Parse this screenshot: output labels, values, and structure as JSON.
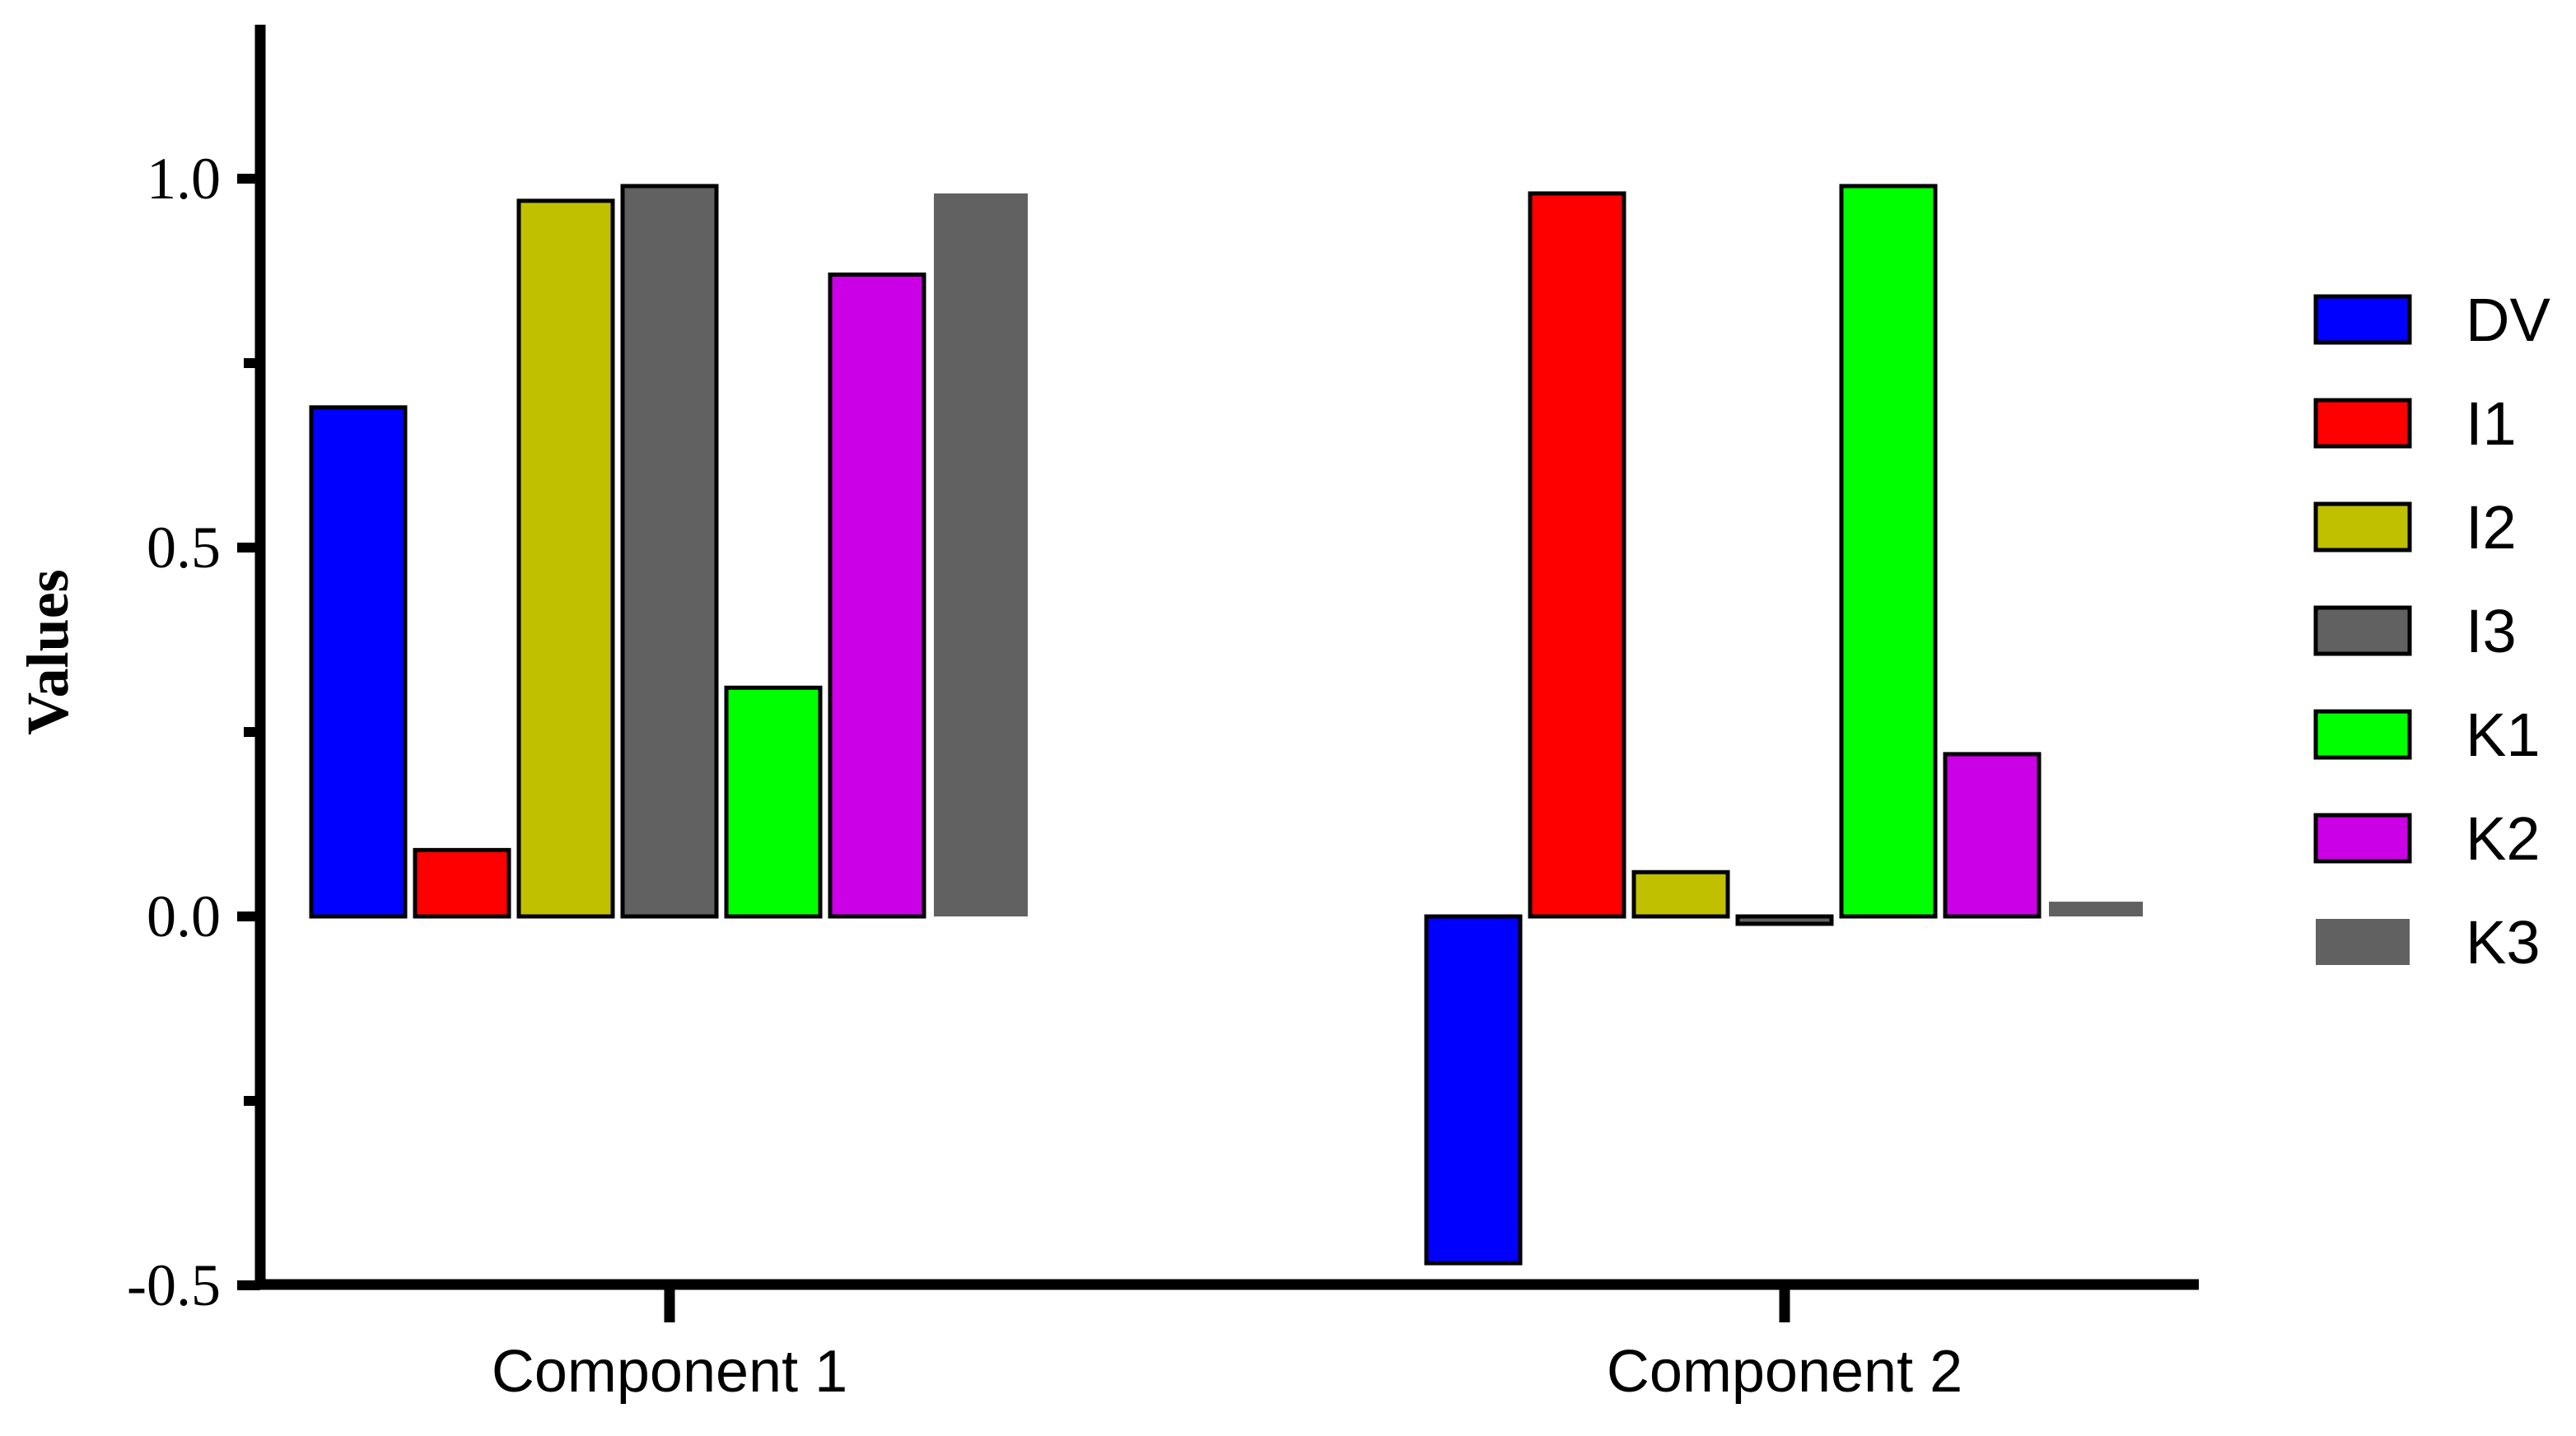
{
  "chart_data": {
    "type": "bar",
    "title": "",
    "xlabel": "",
    "ylabel": "Values",
    "ylim": [
      -0.5,
      1.2
    ],
    "yticks": [
      -0.5,
      0.0,
      0.5,
      1.0
    ],
    "ytick_labels": [
      "-0.5",
      "0.0",
      "0.5",
      "1.0"
    ],
    "categories": [
      "Component 1",
      "Component 2"
    ],
    "legend_position": "right",
    "grid": false,
    "series": [
      {
        "name": "DV",
        "color": "#0000ff",
        "values": [
          0.69,
          -0.47
        ]
      },
      {
        "name": "I1",
        "color": "#ff0000",
        "values": [
          0.09,
          0.98
        ]
      },
      {
        "name": "I2",
        "color": "#c0c000",
        "values": [
          0.97,
          0.06
        ]
      },
      {
        "name": "I3",
        "color": "#616161",
        "values": [
          0.99,
          -0.01
        ]
      },
      {
        "name": "K1",
        "color": "#00ff00",
        "values": [
          0.31,
          0.99
        ]
      },
      {
        "name": "K2",
        "color": "#cc00e6",
        "values": [
          0.87,
          0.22
        ]
      },
      {
        "name": "K3",
        "color": "#616161",
        "values": [
          0.98,
          0.02
        ]
      }
    ]
  }
}
